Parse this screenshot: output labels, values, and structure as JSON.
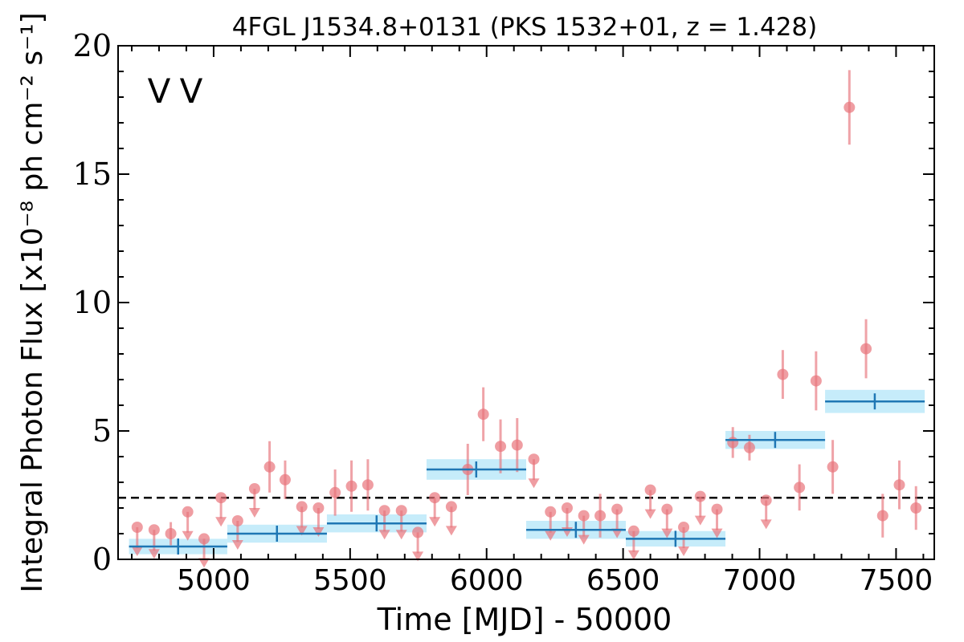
{
  "chart_data": {
    "type": "scatter",
    "title": "4FGL J1534.8+0131 (PKS 1532+01, z = 1.428)",
    "xlabel": "Time [MJD] - 50000",
    "ylabel": "Integral Photon Flux [x10⁻⁸ ph cm⁻² s⁻¹]",
    "xlim": [
      4650,
      7640
    ],
    "ylim": [
      0,
      20
    ],
    "x_ticks": [
      5000,
      5500,
      6000,
      6500,
      7000,
      7500
    ],
    "y_ticks": [
      0,
      5,
      10,
      15,
      20
    ],
    "markers": [
      {
        "label": "V",
        "color": "#1f77b4"
      },
      {
        "label": "V",
        "color": "#d62728"
      }
    ],
    "reference_line": {
      "y": 2.4,
      "style": "dashed"
    },
    "colors": {
      "points": "#e8737a",
      "bins": "#1f77b4",
      "band": "#c6ecfa"
    },
    "series": [
      {
        "detections": [
          {
            "x": 4843,
            "y": 1.0,
            "err": 0.45
          },
          {
            "x": 5205,
            "y": 3.6,
            "err": 1.0
          },
          {
            "x": 5262,
            "y": 3.1,
            "err": 0.75
          },
          {
            "x": 5445,
            "y": 2.6,
            "err": 0.9
          },
          {
            "x": 5505,
            "y": 2.85,
            "err": 1.0
          },
          {
            "x": 5565,
            "y": 2.9,
            "err": 1.0
          },
          {
            "x": 5931,
            "y": 3.5,
            "err": 1.0
          },
          {
            "x": 5988,
            "y": 5.65,
            "err": 1.05
          },
          {
            "x": 6051,
            "y": 4.4,
            "err": 1.05
          },
          {
            "x": 6112,
            "y": 4.45,
            "err": 1.05
          },
          {
            "x": 6416,
            "y": 1.7,
            "err": 0.85
          },
          {
            "x": 6902,
            "y": 4.55,
            "err": 0.6
          },
          {
            "x": 6963,
            "y": 4.35,
            "err": 0.5
          },
          {
            "x": 7085,
            "y": 7.2,
            "err": 0.95
          },
          {
            "x": 7146,
            "y": 2.8,
            "err": 0.9
          },
          {
            "x": 7207,
            "y": 6.95,
            "err": 1.15
          },
          {
            "x": 7268,
            "y": 3.6,
            "err": 1.05
          },
          {
            "x": 7329,
            "y": 17.6,
            "err": 1.45
          },
          {
            "x": 7390,
            "y": 8.2,
            "err": 1.15
          },
          {
            "x": 7451,
            "y": 1.7,
            "err": 0.85
          },
          {
            "x": 7512,
            "y": 2.9,
            "err": 0.95
          },
          {
            "x": 7573,
            "y": 2.0,
            "err": 0.85
          }
        ],
        "upper_limits": [
          {
            "x": 4720,
            "y": 1.25
          },
          {
            "x": 4782,
            "y": 1.15
          },
          {
            "x": 4905,
            "y": 1.85
          },
          {
            "x": 4965,
            "y": 0.8
          },
          {
            "x": 5027,
            "y": 2.4
          },
          {
            "x": 5088,
            "y": 1.5
          },
          {
            "x": 5150,
            "y": 2.75
          },
          {
            "x": 5323,
            "y": 2.05
          },
          {
            "x": 5384,
            "y": 2.0
          },
          {
            "x": 5626,
            "y": 1.9
          },
          {
            "x": 5688,
            "y": 1.9
          },
          {
            "x": 5748,
            "y": 1.05
          },
          {
            "x": 5810,
            "y": 2.4
          },
          {
            "x": 5871,
            "y": 2.05
          },
          {
            "x": 6173,
            "y": 3.9
          },
          {
            "x": 6234,
            "y": 1.85
          },
          {
            "x": 6295,
            "y": 2.0
          },
          {
            "x": 6356,
            "y": 1.7
          },
          {
            "x": 6478,
            "y": 1.95
          },
          {
            "x": 6539,
            "y": 1.1
          },
          {
            "x": 6600,
            "y": 2.7
          },
          {
            "x": 6661,
            "y": 1.95
          },
          {
            "x": 6722,
            "y": 1.25
          },
          {
            "x": 6783,
            "y": 2.45
          },
          {
            "x": 6844,
            "y": 1.95
          },
          {
            "x": 7024,
            "y": 2.3
          }
        ]
      },
      {
        "bins": [
          {
            "x_start": 4690,
            "x_end": 5050,
            "x_center": 4870,
            "y": 0.5,
            "y_err": 0.3
          },
          {
            "x_start": 5050,
            "x_end": 5415,
            "x_center": 5232,
            "y": 1.0,
            "y_err": 0.35
          },
          {
            "x_start": 5415,
            "x_end": 5780,
            "x_center": 5597,
            "y": 1.4,
            "y_err": 0.35
          },
          {
            "x_start": 5780,
            "x_end": 6145,
            "x_center": 5962,
            "y": 3.5,
            "y_err": 0.4
          },
          {
            "x_start": 6145,
            "x_end": 6510,
            "x_center": 6327,
            "y": 1.15,
            "y_err": 0.35
          },
          {
            "x_start": 6510,
            "x_end": 6875,
            "x_center": 6692,
            "y": 0.8,
            "y_err": 0.3
          },
          {
            "x_start": 6875,
            "x_end": 7240,
            "x_center": 7057,
            "y": 4.65,
            "y_err": 0.35
          },
          {
            "x_start": 7240,
            "x_end": 7605,
            "x_center": 7422,
            "y": 6.15,
            "y_err": 0.45
          }
        ]
      }
    ]
  }
}
